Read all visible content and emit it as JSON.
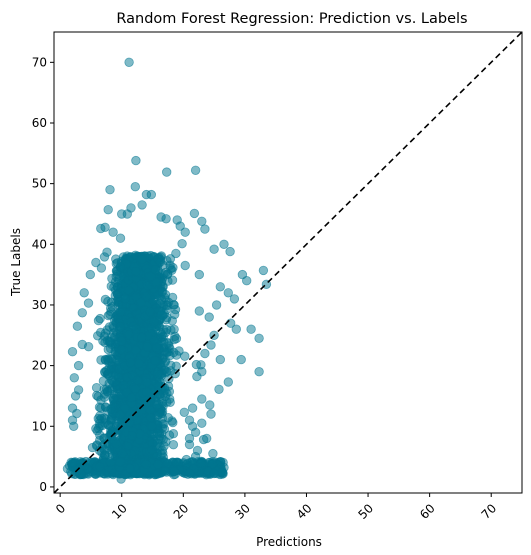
{
  "chart_data": {
    "type": "scatter",
    "title": "Random Forest Regression: Prediction vs. Labels",
    "xlabel": "Predictions",
    "ylabel": "True Labels",
    "xlim": [
      -1,
      75
    ],
    "ylim": [
      -1,
      75
    ],
    "xticks": [
      0,
      10,
      20,
      30,
      40,
      50,
      60,
      70
    ],
    "yticks": [
      0,
      10,
      20,
      30,
      40,
      50,
      60,
      70
    ],
    "grid": false,
    "legend": "none",
    "marker_color": "#00758f",
    "marker_alpha": 0.5,
    "reference_line": {
      "style": "dashed",
      "color": "#000000",
      "from": [
        -1,
        -1
      ],
      "to": [
        75,
        75
      ]
    },
    "points": [
      [
        11.2,
        70.0
      ],
      [
        12.3,
        53.8
      ],
      [
        17.3,
        51.9
      ],
      [
        22.0,
        52.2
      ],
      [
        8.1,
        49.0
      ],
      [
        12.2,
        49.5
      ],
      [
        14.0,
        48.2
      ],
      [
        14.8,
        48.2
      ],
      [
        13.3,
        46.5
      ],
      [
        11.5,
        46.0
      ],
      [
        7.8,
        45.7
      ],
      [
        10.0,
        45.0
      ],
      [
        10.9,
        45.0
      ],
      [
        21.8,
        45.1
      ],
      [
        16.4,
        44.5
      ],
      [
        17.2,
        44.2
      ],
      [
        19.0,
        44.0
      ],
      [
        23.0,
        43.8
      ],
      [
        23.5,
        42.5
      ],
      [
        19.5,
        43.0
      ],
      [
        20.3,
        42.0
      ],
      [
        6.6,
        42.6
      ],
      [
        7.3,
        42.8
      ],
      [
        8.6,
        42.0
      ],
      [
        9.8,
        41.0
      ],
      [
        19.8,
        40.1
      ],
      [
        26.6,
        40.0
      ],
      [
        25.0,
        39.2
      ],
      [
        27.6,
        38.8
      ],
      [
        18.8,
        38.5
      ],
      [
        7.6,
        38.7
      ],
      [
        5.8,
        37.0
      ],
      [
        4.9,
        35.0
      ],
      [
        6.7,
        36.1
      ],
      [
        20.3,
        36.5
      ],
      [
        22.6,
        35.0
      ],
      [
        29.6,
        35.0
      ],
      [
        30.3,
        34.0
      ],
      [
        33.0,
        35.7
      ],
      [
        33.5,
        33.4
      ],
      [
        26.0,
        33.0
      ],
      [
        27.3,
        32.0
      ],
      [
        28.3,
        31.0
      ],
      [
        3.9,
        32.0
      ],
      [
        4.6,
        30.3
      ],
      [
        25.4,
        30.0
      ],
      [
        22.6,
        29.0
      ],
      [
        24.2,
        28.0
      ],
      [
        27.7,
        27.0
      ],
      [
        3.6,
        28.7
      ],
      [
        31.0,
        26.0
      ],
      [
        25.0,
        25.0
      ],
      [
        28.6,
        26.0
      ],
      [
        32.3,
        24.5
      ],
      [
        2.8,
        26.5
      ],
      [
        3.6,
        23.5
      ],
      [
        24.5,
        23.4
      ],
      [
        23.5,
        22.0
      ],
      [
        26.0,
        21.0
      ],
      [
        29.4,
        21.0
      ],
      [
        2.0,
        22.3
      ],
      [
        3.0,
        20.0
      ],
      [
        23.0,
        19.0
      ],
      [
        32.3,
        19.0
      ],
      [
        2.3,
        18.0
      ],
      [
        22.2,
        18.2
      ],
      [
        27.3,
        17.3
      ],
      [
        25.8,
        16.1
      ],
      [
        2.5,
        15.0
      ],
      [
        3.0,
        16.0
      ],
      [
        23.0,
        14.5
      ],
      [
        24.3,
        13.5
      ],
      [
        2.0,
        13.0
      ],
      [
        2.7,
        12.1
      ],
      [
        21.5,
        13.0
      ],
      [
        24.5,
        12.0
      ],
      [
        2.0,
        11.0
      ],
      [
        2.2,
        10.0
      ],
      [
        21.0,
        11.0
      ],
      [
        23.0,
        10.5
      ],
      [
        21.5,
        10.0
      ],
      [
        22.0,
        9.0
      ],
      [
        21.0,
        8.0
      ],
      [
        23.8,
        8.0
      ],
      [
        21.0,
        7.0
      ],
      [
        22.3,
        6.0
      ],
      [
        23.3,
        7.8
      ],
      [
        22.0,
        5.0
      ],
      [
        20.5,
        4.5
      ],
      [
        24.8,
        5.5
      ],
      [
        21.7,
        3.0
      ],
      [
        26.6,
        3.2
      ],
      [
        26.4,
        2.4
      ],
      [
        21.0,
        2.3
      ],
      [
        24.0,
        2.6
      ],
      [
        1.2,
        3.0
      ],
      [
        2.0,
        4.0
      ],
      [
        3.0,
        2.8
      ],
      [
        9.9,
        1.3
      ],
      [
        25.0,
        2.2
      ]
    ]
  }
}
